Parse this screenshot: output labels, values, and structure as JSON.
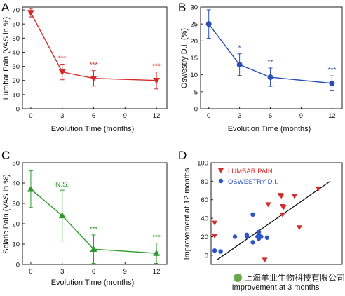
{
  "panels": {
    "A": "A",
    "B": "B",
    "C": "C",
    "D": "D"
  },
  "watermark": "上海羊业生物科技有限公司",
  "chart_data": [
    {
      "id": "A",
      "type": "line",
      "color": "#d42a2a",
      "marker": "triangle-down",
      "xlabel": "Evolution Time (months)",
      "ylabel": "Lumbar Pain (VAS in %)",
      "xlim": [
        -0.8,
        13
      ],
      "ylim": [
        0,
        72
      ],
      "xticks": [
        0,
        3,
        6,
        9,
        12
      ],
      "yticks": [
        0,
        10,
        20,
        30,
        40,
        50,
        60,
        70
      ],
      "x": [
        0,
        3,
        6,
        12
      ],
      "y": [
        68,
        26,
        21.5,
        20
      ],
      "err": [
        3,
        5.5,
        5.5,
        6
      ],
      "annotations": [
        "",
        "***",
        "***",
        "***"
      ]
    },
    {
      "id": "B",
      "type": "line",
      "color": "#2c4fb5",
      "marker": "circle",
      "xlabel": "Evolution Time (months)",
      "ylabel": "Oswestry D.I. (%)",
      "xlim": [
        -0.8,
        13
      ],
      "ylim": [
        0,
        30
      ],
      "xticks": [
        0,
        3,
        6,
        9,
        12
      ],
      "yticks": [
        0,
        5,
        10,
        15,
        20,
        25,
        30
      ],
      "x": [
        0,
        3,
        6,
        12
      ],
      "y": [
        25,
        13,
        9.3,
        7.5
      ],
      "err": [
        4.2,
        3.2,
        2.7,
        2.2
      ],
      "annotations": [
        "",
        "*",
        "**",
        "***"
      ]
    },
    {
      "id": "C",
      "type": "line",
      "color": "#2e9a2e",
      "marker": "triangle-up",
      "xlabel": "Evolution Time (months)",
      "ylabel": "Sciatic Pain (VAS in %)",
      "xlim": [
        -0.8,
        13
      ],
      "ylim": [
        0,
        50
      ],
      "xticks": [
        0,
        3,
        6,
        9,
        12
      ],
      "yticks": [
        0,
        10,
        20,
        30,
        40,
        50
      ],
      "x": [
        0,
        3,
        6,
        12
      ],
      "y": [
        37,
        24,
        7.5,
        5.5
      ],
      "err": [
        9,
        12.5,
        7,
        5
      ],
      "annotations": [
        "",
        "N.S.",
        "***",
        "***"
      ]
    },
    {
      "id": "D",
      "type": "scatter",
      "xlabel": "Improvement at 3 months",
      "ylabel": "Improvement at 12 months",
      "xlim": [
        -10,
        100
      ],
      "ylim": [
        -10,
        100
      ],
      "yticks": [
        0,
        20,
        40,
        60,
        80,
        100
      ],
      "legend": "top-left",
      "fit_line": {
        "x": [
          -5,
          90
        ],
        "y": [
          -5,
          80
        ],
        "color": "#111111"
      },
      "series": [
        {
          "name": "LUMBAR PAIN",
          "color": "#d42a2a",
          "marker": "triangle-down",
          "points": [
            [
              -7,
              35
            ],
            [
              -7,
              21
            ],
            [
              38,
              55
            ],
            [
              48,
              65
            ],
            [
              49,
              64
            ],
            [
              50,
              53
            ],
            [
              51,
              52
            ],
            [
              50,
              44
            ],
            [
              60,
              64
            ],
            [
              80,
              72
            ],
            [
              64,
              30
            ],
            [
              35,
              -5
            ]
          ]
        },
        {
          "name": "OSWESTRY D.I.",
          "color": "#2d55c8",
          "marker": "circle",
          "points": [
            [
              -2,
              4
            ],
            [
              -7,
              5
            ],
            [
              10,
              20
            ],
            [
              20,
              20
            ],
            [
              25,
              44
            ],
            [
              29,
              20
            ],
            [
              30,
              22
            ],
            [
              32,
              20
            ],
            [
              30,
              18
            ],
            [
              37,
              19
            ],
            [
              30,
              25
            ],
            [
              20,
              22
            ],
            [
              25,
              14
            ]
          ]
        }
      ]
    }
  ]
}
